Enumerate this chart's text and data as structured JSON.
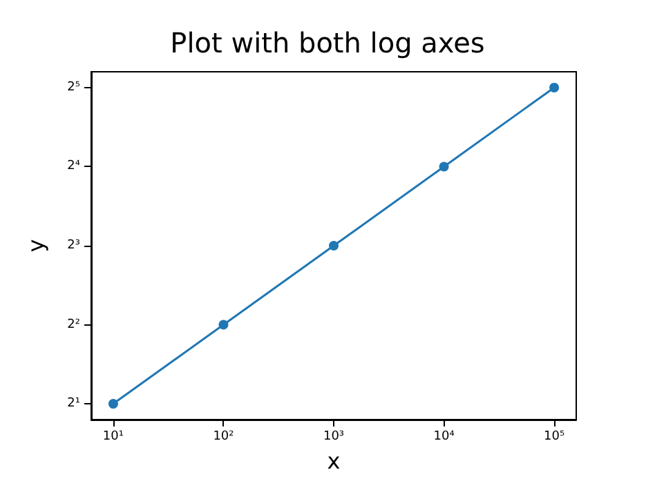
{
  "chart_data": {
    "type": "line",
    "title": "Plot with both log axes",
    "xlabel": "x",
    "ylabel": "y",
    "x": [
      10,
      100,
      1000,
      10000,
      100000
    ],
    "series": [
      {
        "color": "#1f77b4",
        "values": [
          2,
          4,
          8,
          16,
          32
        ]
      }
    ],
    "log": "xy",
    "marker": "circle",
    "line_style": "solid",
    "grid": false,
    "xlim": [
      6.31,
      158489
    ],
    "ylim": [
      1.741,
      36.76
    ],
    "xticks": [
      {
        "value": 10,
        "label": "10¹"
      },
      {
        "value": 100,
        "label": "10²"
      },
      {
        "value": 1000,
        "label": "10³"
      },
      {
        "value": 10000,
        "label": "10⁴"
      },
      {
        "value": 100000,
        "label": "10⁵"
      }
    ],
    "yticks": [
      {
        "value": 2,
        "label": "2¹"
      },
      {
        "value": 4,
        "label": "2²"
      },
      {
        "value": 8,
        "label": "2³"
      },
      {
        "value": 16,
        "label": "2⁴"
      },
      {
        "value": 32,
        "label": "2⁵"
      }
    ]
  }
}
